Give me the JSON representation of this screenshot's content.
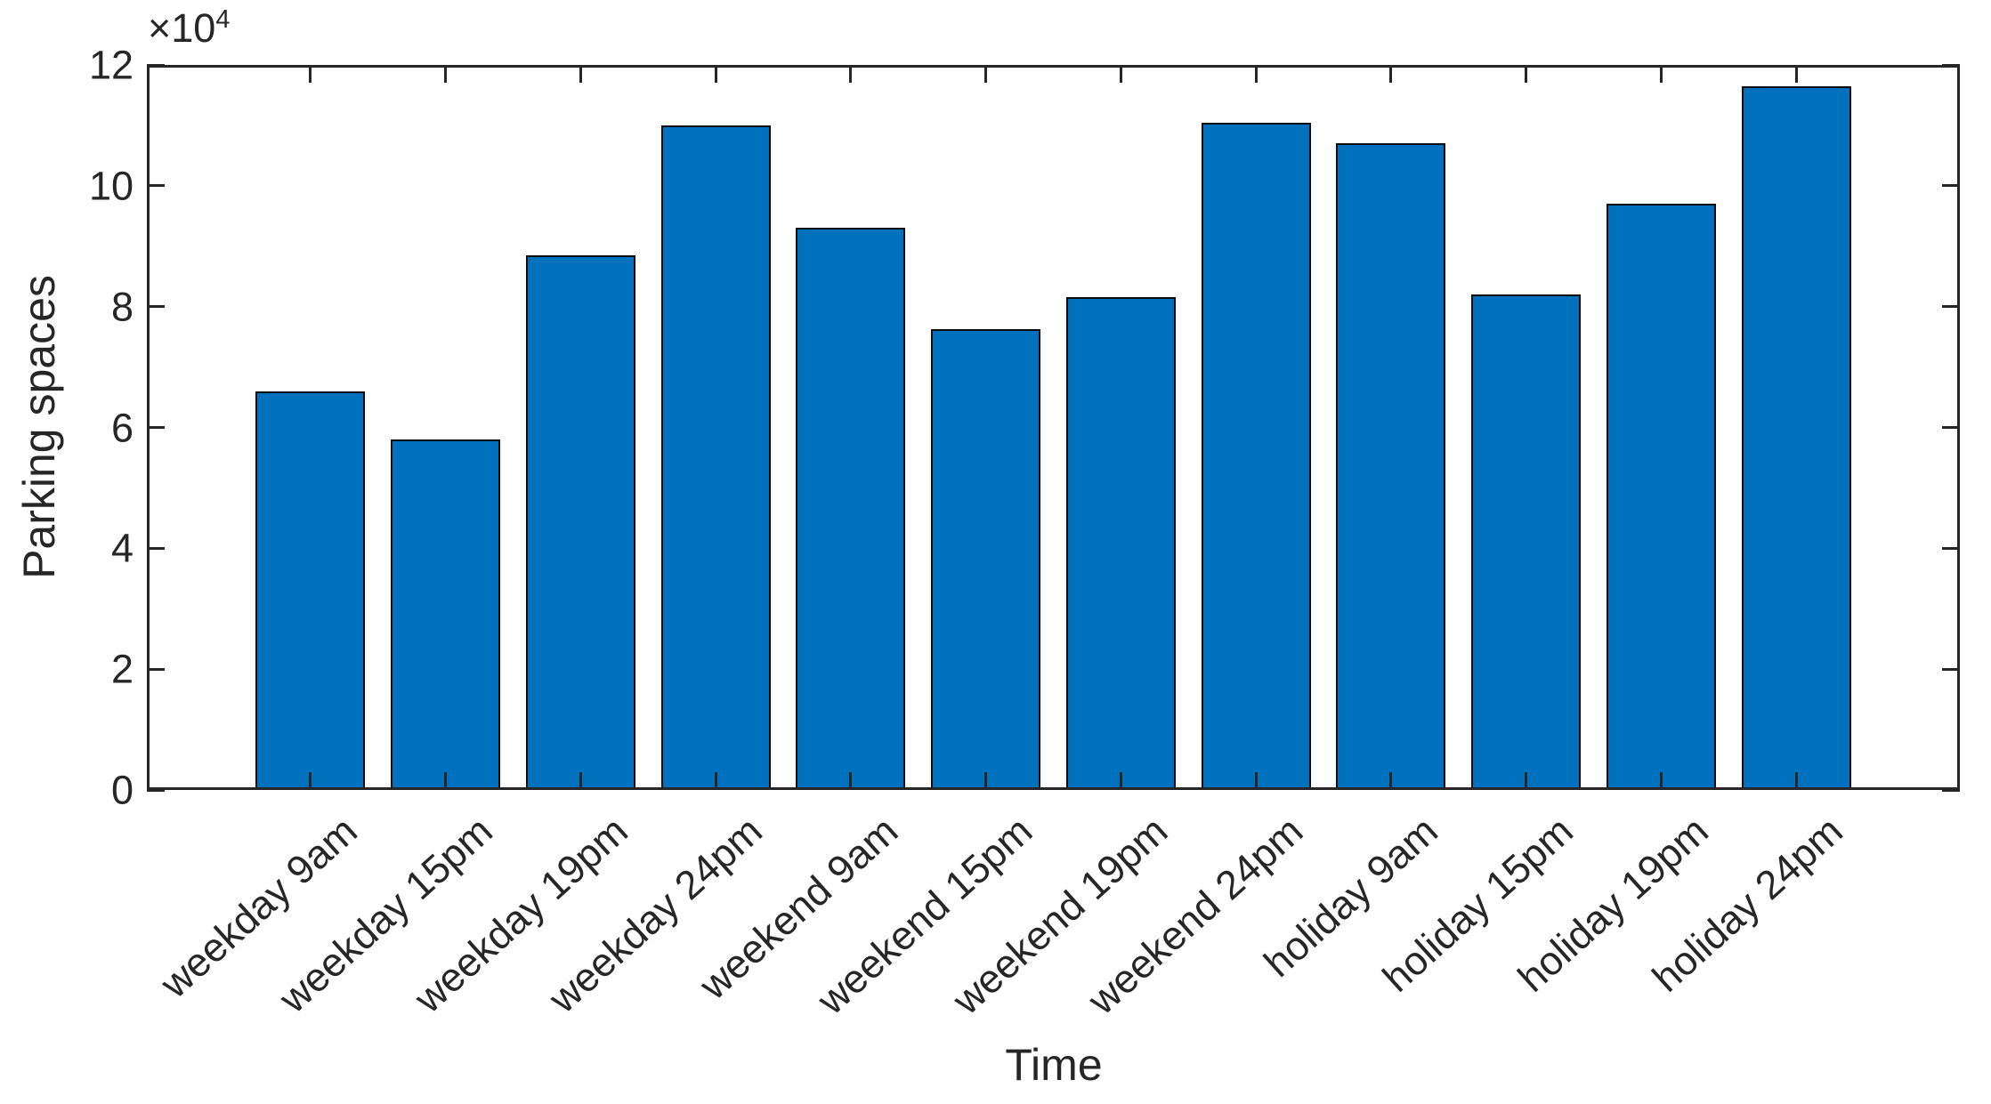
{
  "chart_data": {
    "type": "bar",
    "title": "",
    "xlabel": "Time",
    "ylabel": "Parking spaces",
    "y_axis_exponent": {
      "base": "×10",
      "exponent": "4"
    },
    "categories": [
      "weekday 9am",
      "weekday 15pm",
      "weekday 19pm",
      "weekday 24pm",
      "weekend 9am",
      "weekend 15pm",
      "weekend 19pm",
      "weekend 24pm",
      "holiday 9am",
      "holiday 15pm",
      "holiday 19pm",
      "holiday 24pm"
    ],
    "values": [
      66000,
      58000,
      88500,
      110000,
      93000,
      76300,
      81500,
      110500,
      107000,
      82000,
      97000,
      116500
    ],
    "ylim": [
      0,
      120000
    ],
    "y_ticks": [
      0,
      20000,
      40000,
      60000,
      80000,
      100000,
      120000
    ],
    "y_tick_labels": [
      "0",
      "2",
      "4",
      "6",
      "8",
      "10",
      "12"
    ],
    "bar_color": "#0072BD",
    "bar_edge_color": "#0a0a0a",
    "axis_color": "#262626",
    "background_color": "#ffffff",
    "grid": false,
    "legend": "none",
    "box": true,
    "tick_direction": "in",
    "bar_width_frac": 0.81,
    "x_tick_rotation_deg": 42
  }
}
